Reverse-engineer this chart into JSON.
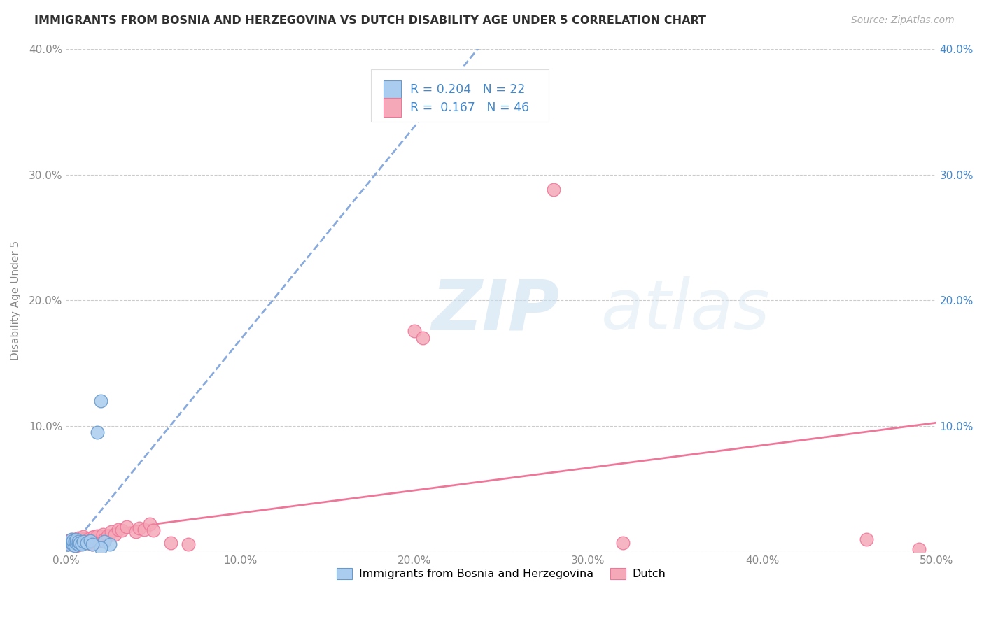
{
  "title": "IMMIGRANTS FROM BOSNIA AND HERZEGOVINA VS DUTCH DISABILITY AGE UNDER 5 CORRELATION CHART",
  "source": "Source: ZipAtlas.com",
  "ylabel": "Disability Age Under 5",
  "legend_label_blue": "Immigrants from Bosnia and Herzegovina",
  "legend_label_pink": "Dutch",
  "r_blue": 0.204,
  "n_blue": 22,
  "r_pink": 0.167,
  "n_pink": 46,
  "xlim": [
    0,
    0.5
  ],
  "ylim": [
    0,
    0.4
  ],
  "xticks": [
    0.0,
    0.1,
    0.2,
    0.3,
    0.4,
    0.5
  ],
  "yticks": [
    0.0,
    0.1,
    0.2,
    0.3,
    0.4
  ],
  "xtick_labels": [
    "0.0%",
    "10.0%",
    "20.0%",
    "30.0%",
    "40.0%",
    "50.0%"
  ],
  "ytick_labels": [
    "",
    "10.0%",
    "20.0%",
    "30.0%",
    "40.0%"
  ],
  "blue_scatter_x": [
    0.002,
    0.003,
    0.003,
    0.004,
    0.004,
    0.005,
    0.005,
    0.006,
    0.006,
    0.007,
    0.007,
    0.008,
    0.009,
    0.01,
    0.012,
    0.014,
    0.018,
    0.02,
    0.022,
    0.025,
    0.02,
    0.015
  ],
  "blue_scatter_y": [
    0.006,
    0.007,
    0.01,
    0.006,
    0.009,
    0.005,
    0.008,
    0.007,
    0.01,
    0.006,
    0.008,
    0.007,
    0.006,
    0.008,
    0.007,
    0.009,
    0.095,
    0.12,
    0.008,
    0.006,
    0.003,
    0.006
  ],
  "pink_scatter_x": [
    0.002,
    0.003,
    0.003,
    0.004,
    0.004,
    0.005,
    0.005,
    0.006,
    0.006,
    0.007,
    0.007,
    0.008,
    0.008,
    0.009,
    0.01,
    0.01,
    0.011,
    0.012,
    0.013,
    0.014,
    0.015,
    0.016,
    0.017,
    0.018,
    0.02,
    0.021,
    0.022,
    0.024,
    0.026,
    0.028,
    0.03,
    0.032,
    0.035,
    0.04,
    0.042,
    0.045,
    0.048,
    0.05,
    0.06,
    0.07,
    0.2,
    0.205,
    0.28,
    0.32,
    0.46,
    0.49
  ],
  "pink_scatter_y": [
    0.007,
    0.006,
    0.009,
    0.007,
    0.01,
    0.006,
    0.008,
    0.005,
    0.009,
    0.007,
    0.011,
    0.006,
    0.008,
    0.01,
    0.007,
    0.012,
    0.008,
    0.009,
    0.007,
    0.011,
    0.006,
    0.012,
    0.008,
    0.013,
    0.009,
    0.014,
    0.01,
    0.013,
    0.016,
    0.014,
    0.018,
    0.017,
    0.02,
    0.016,
    0.019,
    0.018,
    0.022,
    0.017,
    0.007,
    0.006,
    0.176,
    0.17,
    0.288,
    0.007,
    0.01,
    0.002
  ],
  "watermark_zip": "ZIP",
  "watermark_atlas": "atlas",
  "color_blue": "#aaccee",
  "color_pink": "#f5a8b8",
  "color_blue_edge": "#6699cc",
  "color_pink_edge": "#ee7799",
  "color_blue_line": "#88aadd",
  "color_pink_line": "#ee7799",
  "color_title": "#303030",
  "color_source": "#aaaaaa",
  "color_r_label": "#333333",
  "color_r_value": "#4488cc",
  "color_axis_right": "#4488cc",
  "color_axis_left": "#888888",
  "background_color": "#ffffff",
  "grid_color": "#cccccc"
}
